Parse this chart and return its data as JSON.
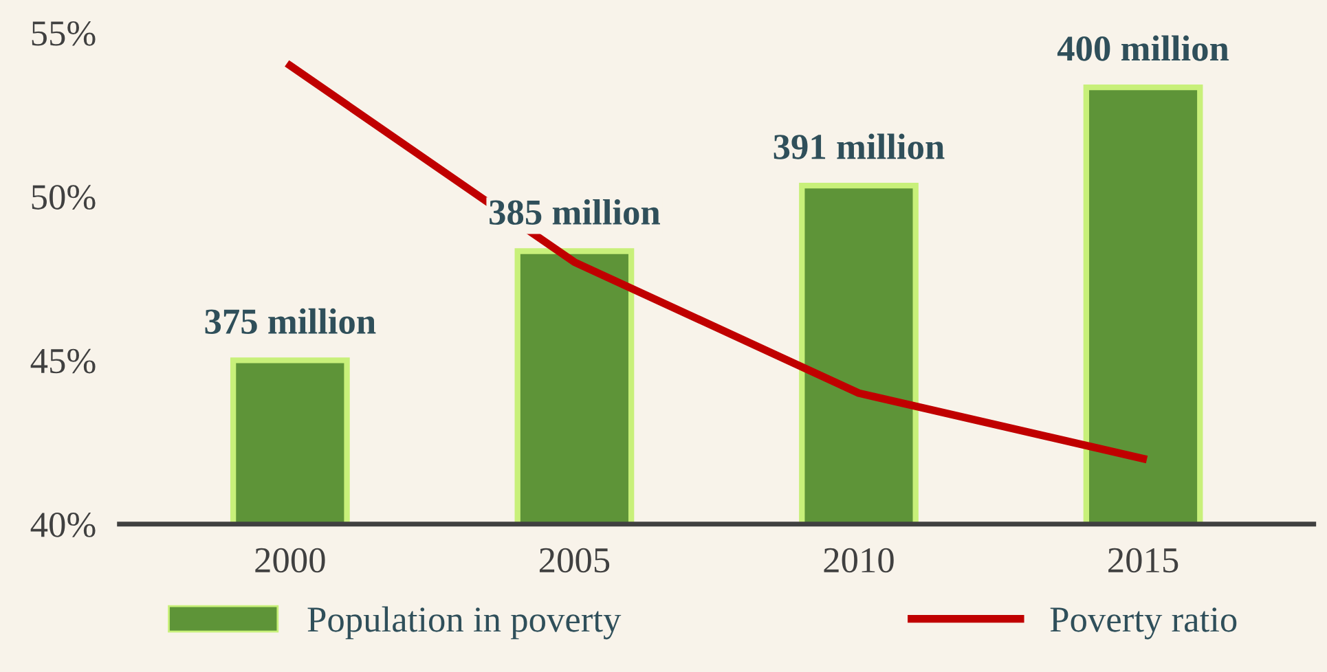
{
  "chart_data": {
    "type": "bar",
    "categories": [
      "2000",
      "2005",
      "2010",
      "2015"
    ],
    "series": [
      {
        "name": "Population in poverty",
        "axis": "y2",
        "color": "#5e9438",
        "values": [
          375,
          385,
          391,
          400
        ],
        "value_labels": [
          "375 million",
          "385 million",
          "391 million",
          "400 million"
        ]
      },
      {
        "name": "Poverty ratio",
        "type": "line",
        "color": "#c00000",
        "values": [
          54,
          48,
          44,
          42
        ]
      }
    ],
    "ylim": [
      40,
      56
    ],
    "yticks": [
      {
        "value": 40,
        "label": "40%"
      },
      {
        "value": 45,
        "label": "45%"
      },
      {
        "value": 50,
        "label": "50%"
      },
      {
        "value": 55,
        "label": "55%"
      }
    ],
    "y2lim": [
      360,
      408
    ],
    "grid": false,
    "legend": "bottom",
    "marker": "none",
    "line_style": "solid"
  }
}
